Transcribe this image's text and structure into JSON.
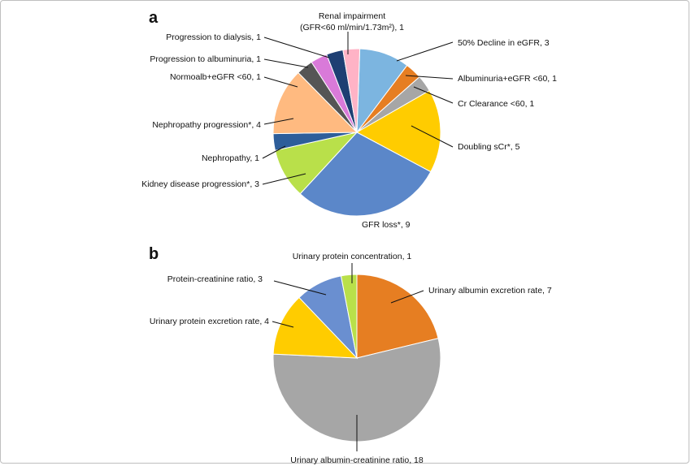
{
  "chart_data": [
    {
      "type": "pie",
      "panel": "a",
      "title": "",
      "slices": [
        {
          "label": "50% Decline in eGFR, 3",
          "value": 3,
          "color": "#7cb5e0"
        },
        {
          "label": "Albuminuria+eGFR <60, 1",
          "value": 1,
          "color": "#e67e22"
        },
        {
          "label": "Cr Clearance <60, 1",
          "value": 1,
          "color": "#a6a6a6"
        },
        {
          "label": "Doubling sCr*, 5",
          "value": 5,
          "color": "#ffcc00"
        },
        {
          "label": "GFR loss*, 9",
          "value": 9,
          "color": "#5b87c9"
        },
        {
          "label": "Kidney disease progression*, 3",
          "value": 3,
          "color": "#b9e04a"
        },
        {
          "label": "Nephropathy, 1",
          "value": 1,
          "color": "#2e5e9a"
        },
        {
          "label": "Nephropathy progression*, 4",
          "value": 4,
          "color": "#ffba80"
        },
        {
          "label": "Normoalb+eGFR <60, 1",
          "value": 1,
          "color": "#555555"
        },
        {
          "label": "Progression to albuminuria, 1",
          "value": 1,
          "color": "#d97ad9"
        },
        {
          "label": "Progression to dialysis, 1",
          "value": 1,
          "color": "#1e3f73"
        },
        {
          "label": "Renal impairment",
          "label2": "(GFR<60 ml/min/1.73m²), 1",
          "value": 1,
          "color": "#ffb3c6"
        }
      ]
    },
    {
      "type": "pie",
      "panel": "b",
      "title": "",
      "slices": [
        {
          "label": "Urinary albumin excretion rate, 7",
          "value": 7,
          "color": "#e67e22"
        },
        {
          "label": "Urinary albumin-creatinine ratio, 18",
          "value": 18,
          "color": "#a6a6a6"
        },
        {
          "label": "Urinary protein excretion rate, 4",
          "value": 4,
          "color": "#ffcc00"
        },
        {
          "label": "Protein-creatinine ratio, 3",
          "value": 3,
          "color": "#6a8fd0"
        },
        {
          "label": "Urinary protein concentration, 1",
          "value": 1,
          "color": "#b9e04a"
        }
      ]
    }
  ]
}
